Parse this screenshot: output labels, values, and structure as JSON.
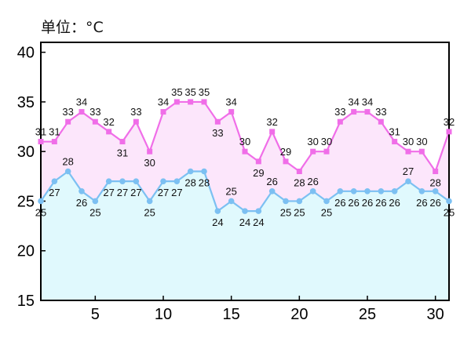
{
  "unit_label": "单位：°C",
  "chart_data": {
    "type": "area",
    "title": "",
    "xlabel": "",
    "ylabel": "",
    "xlim": [
      1,
      31
    ],
    "ylim": [
      15,
      41
    ],
    "x_ticks": [
      5,
      10,
      15,
      20,
      25,
      30
    ],
    "y_ticks": [
      15,
      20,
      25,
      30,
      35,
      40
    ],
    "grid": false,
    "x": [
      1,
      2,
      3,
      4,
      5,
      6,
      7,
      8,
      9,
      10,
      11,
      12,
      13,
      14,
      15,
      16,
      17,
      18,
      19,
      20,
      21,
      22,
      23,
      24,
      25,
      26,
      27,
      28,
      29,
      30,
      31
    ],
    "series": [
      {
        "key": "high",
        "values": [
          31,
          31,
          33,
          34,
          33,
          32,
          31,
          33,
          30,
          34,
          35,
          35,
          35,
          33,
          34,
          30,
          29,
          32,
          29,
          28,
          30,
          30,
          33,
          34,
          34,
          33,
          31,
          30,
          30,
          28,
          32
        ],
        "line_color": "#f06ee8",
        "fill_color": "#fce6fb",
        "marker": "square"
      },
      {
        "key": "low",
        "values": [
          25,
          27,
          28,
          26,
          25,
          27,
          27,
          27,
          25,
          27,
          27,
          28,
          28,
          24,
          25,
          24,
          24,
          26,
          25,
          25,
          26,
          25,
          26,
          26,
          26,
          26,
          26,
          27,
          26,
          26,
          25
        ],
        "line_color": "#7cc0f2",
        "fill_color": "#e0f9fd",
        "marker": "circle"
      }
    ]
  }
}
